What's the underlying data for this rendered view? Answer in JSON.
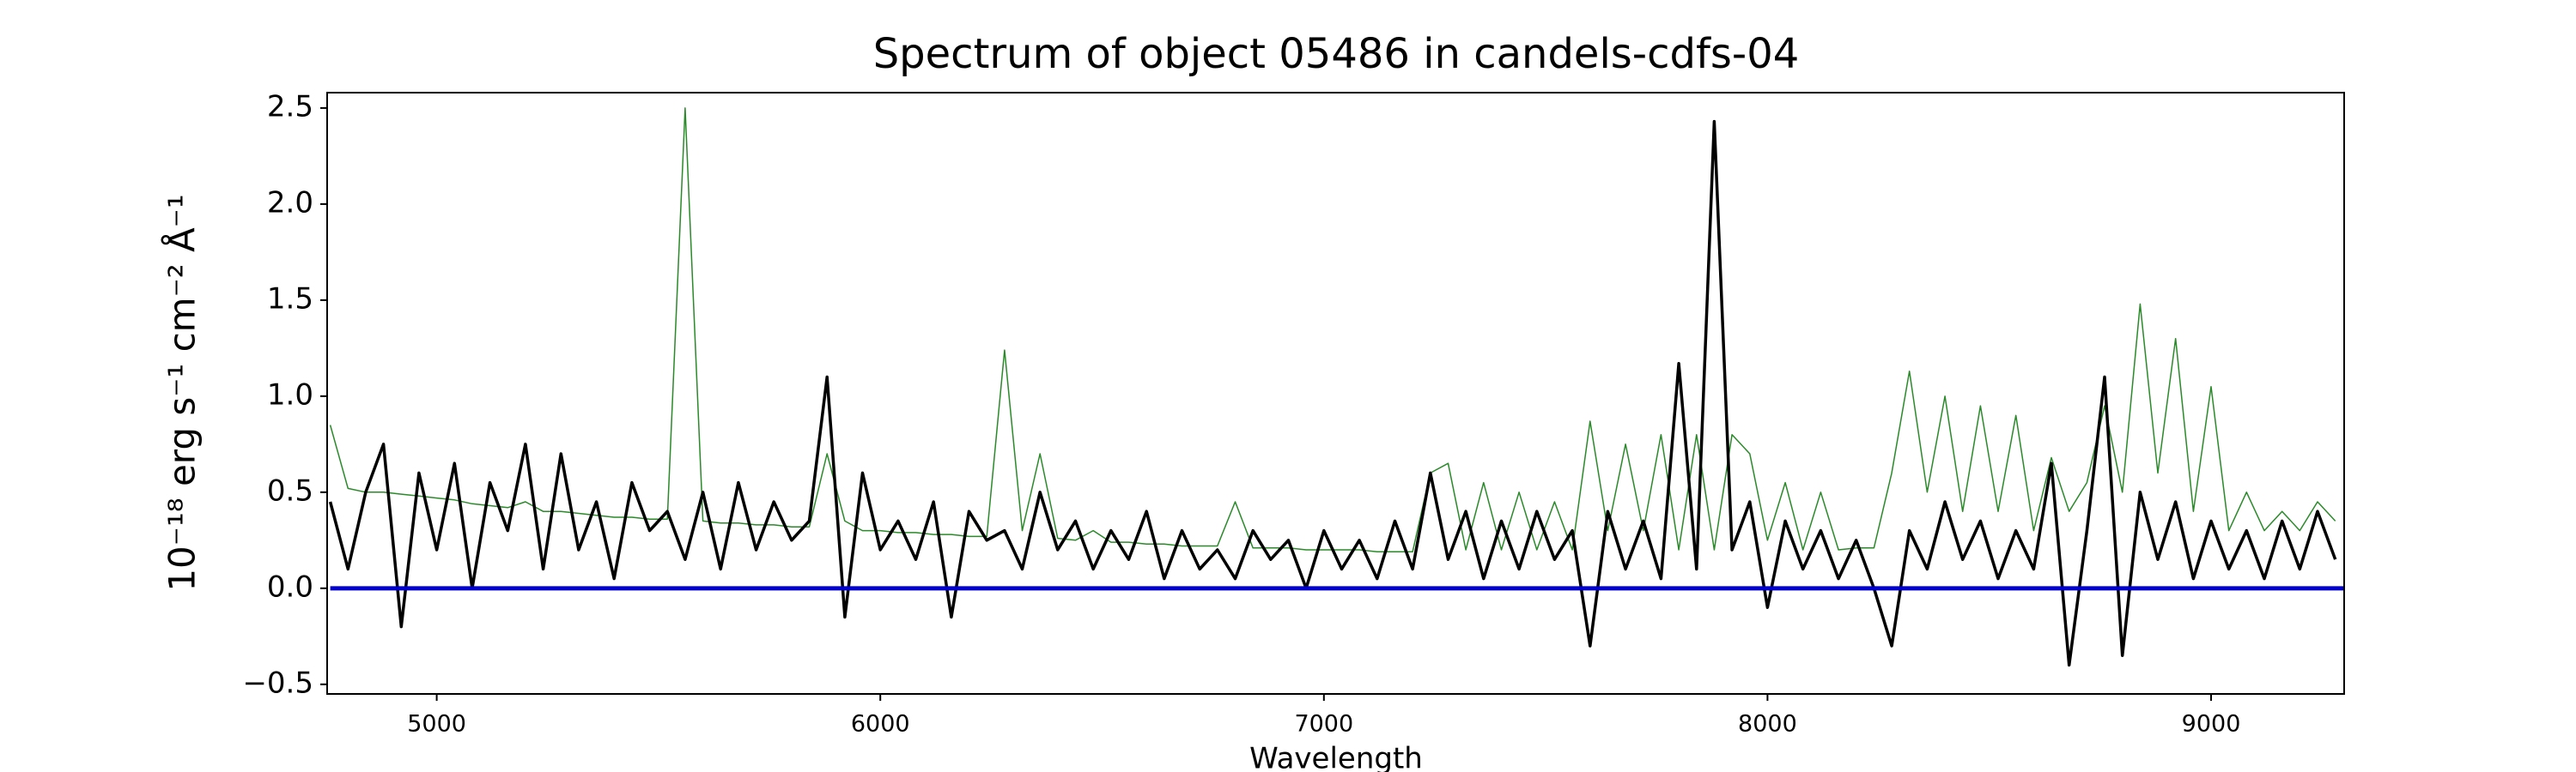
{
  "chart_data": {
    "type": "line",
    "title": "Spectrum of object 05486 in candels-cdfs-04",
    "xlabel": "Wavelength",
    "ylabel": "10⁻¹⁸ erg s⁻¹ cm⁻² Å⁻¹",
    "x": [
      4760,
      4800,
      4840,
      4880,
      4920,
      4960,
      5000,
      5040,
      5080,
      5120,
      5160,
      5200,
      5240,
      5280,
      5320,
      5360,
      5400,
      5440,
      5480,
      5520,
      5560,
      5600,
      5640,
      5680,
      5720,
      5760,
      5800,
      5840,
      5880,
      5920,
      5960,
      6000,
      6040,
      6080,
      6120,
      6160,
      6200,
      6240,
      6280,
      6320,
      6360,
      6400,
      6440,
      6480,
      6520,
      6560,
      6600,
      6640,
      6680,
      6720,
      6760,
      6800,
      6840,
      6880,
      6920,
      6960,
      7000,
      7040,
      7080,
      7120,
      7160,
      7200,
      7240,
      7280,
      7320,
      7360,
      7400,
      7440,
      7480,
      7520,
      7560,
      7600,
      7640,
      7680,
      7720,
      7760,
      7800,
      7840,
      7880,
      7920,
      7960,
      8000,
      8040,
      8080,
      8120,
      8160,
      8200,
      8240,
      8280,
      8320,
      8360,
      8400,
      8440,
      8480,
      8520,
      8560,
      8600,
      8640,
      8680,
      8720,
      8760,
      8800,
      8840,
      8880,
      8920,
      8960,
      9000,
      9040,
      9080,
      9120,
      9160,
      9200,
      9240,
      9280
    ],
    "series": [
      {
        "color": "#2a8a2a",
        "width": 1.5,
        "values": [
          0.85,
          0.52,
          0.5,
          0.5,
          0.49,
          0.48,
          0.47,
          0.46,
          0.44,
          0.43,
          0.42,
          0.45,
          0.4,
          0.4,
          0.39,
          0.38,
          0.37,
          0.37,
          0.36,
          0.36,
          2.5,
          0.35,
          0.34,
          0.34,
          0.33,
          0.33,
          0.32,
          0.32,
          0.7,
          0.35,
          0.3,
          0.3,
          0.29,
          0.29,
          0.28,
          0.28,
          0.27,
          0.27,
          1.24,
          0.3,
          0.7,
          0.26,
          0.25,
          0.3,
          0.24,
          0.24,
          0.23,
          0.23,
          0.22,
          0.22,
          0.22,
          0.45,
          0.21,
          0.21,
          0.21,
          0.2,
          0.2,
          0.2,
          0.2,
          0.19,
          0.19,
          0.19,
          0.6,
          0.65,
          0.2,
          0.55,
          0.2,
          0.5,
          0.2,
          0.45,
          0.2,
          0.87,
          0.3,
          0.75,
          0.3,
          0.8,
          0.2,
          0.8,
          0.2,
          0.8,
          0.7,
          0.25,
          0.55,
          0.2,
          0.5,
          0.2,
          0.21,
          0.21,
          0.6,
          1.13,
          0.5,
          1.0,
          0.4,
          0.95,
          0.4,
          0.9,
          0.3,
          0.68,
          0.4,
          0.55,
          0.95,
          0.5,
          1.48,
          0.6,
          1.3,
          0.4,
          1.05,
          0.3,
          0.5,
          0.3,
          0.4,
          0.3,
          0.45,
          0.35
        ]
      },
      {
        "color": "#000000",
        "width": 3.5,
        "values": [
          0.45,
          0.1,
          0.5,
          0.75,
          -0.2,
          0.6,
          0.2,
          0.65,
          0.0,
          0.55,
          0.3,
          0.75,
          0.1,
          0.7,
          0.2,
          0.45,
          0.05,
          0.55,
          0.3,
          0.4,
          0.15,
          0.5,
          0.1,
          0.55,
          0.2,
          0.45,
          0.25,
          0.35,
          1.1,
          -0.15,
          0.6,
          0.2,
          0.35,
          0.15,
          0.45,
          -0.15,
          0.4,
          0.25,
          0.3,
          0.1,
          0.5,
          0.2,
          0.35,
          0.1,
          0.3,
          0.15,
          0.4,
          0.05,
          0.3,
          0.1,
          0.2,
          0.05,
          0.3,
          0.15,
          0.25,
          0.0,
          0.3,
          0.1,
          0.25,
          0.05,
          0.35,
          0.1,
          0.6,
          0.15,
          0.4,
          0.05,
          0.35,
          0.1,
          0.4,
          0.15,
          0.3,
          -0.3,
          0.4,
          0.1,
          0.35,
          0.05,
          1.17,
          0.1,
          2.43,
          0.2,
          0.45,
          -0.1,
          0.35,
          0.1,
          0.3,
          0.05,
          0.25,
          0.0,
          -0.3,
          0.3,
          0.1,
          0.45,
          0.15,
          0.35,
          0.05,
          0.3,
          0.1,
          0.65,
          -0.4,
          0.3,
          1.1,
          -0.35,
          0.5,
          0.15,
          0.45,
          0.05,
          0.35,
          0.1,
          0.3,
          0.05,
          0.35,
          0.1,
          0.4,
          0.15
        ]
      }
    ],
    "hlines": [
      {
        "y": 0,
        "color": "#0000cc"
      }
    ],
    "xlim": [
      4753,
      9300
    ],
    "ylim": [
      -0.55,
      2.58
    ],
    "xticks": [
      5000,
      6000,
      7000,
      8000,
      9000
    ],
    "yticks": [
      {
        "value": -0.5,
        "label": "−0.5"
      },
      {
        "value": 0,
        "label": "0.0"
      },
      0.5,
      {
        "value": 1,
        "label": "1.0"
      },
      1.5,
      {
        "value": 2,
        "label": "2.0"
      },
      2.5
    ]
  }
}
